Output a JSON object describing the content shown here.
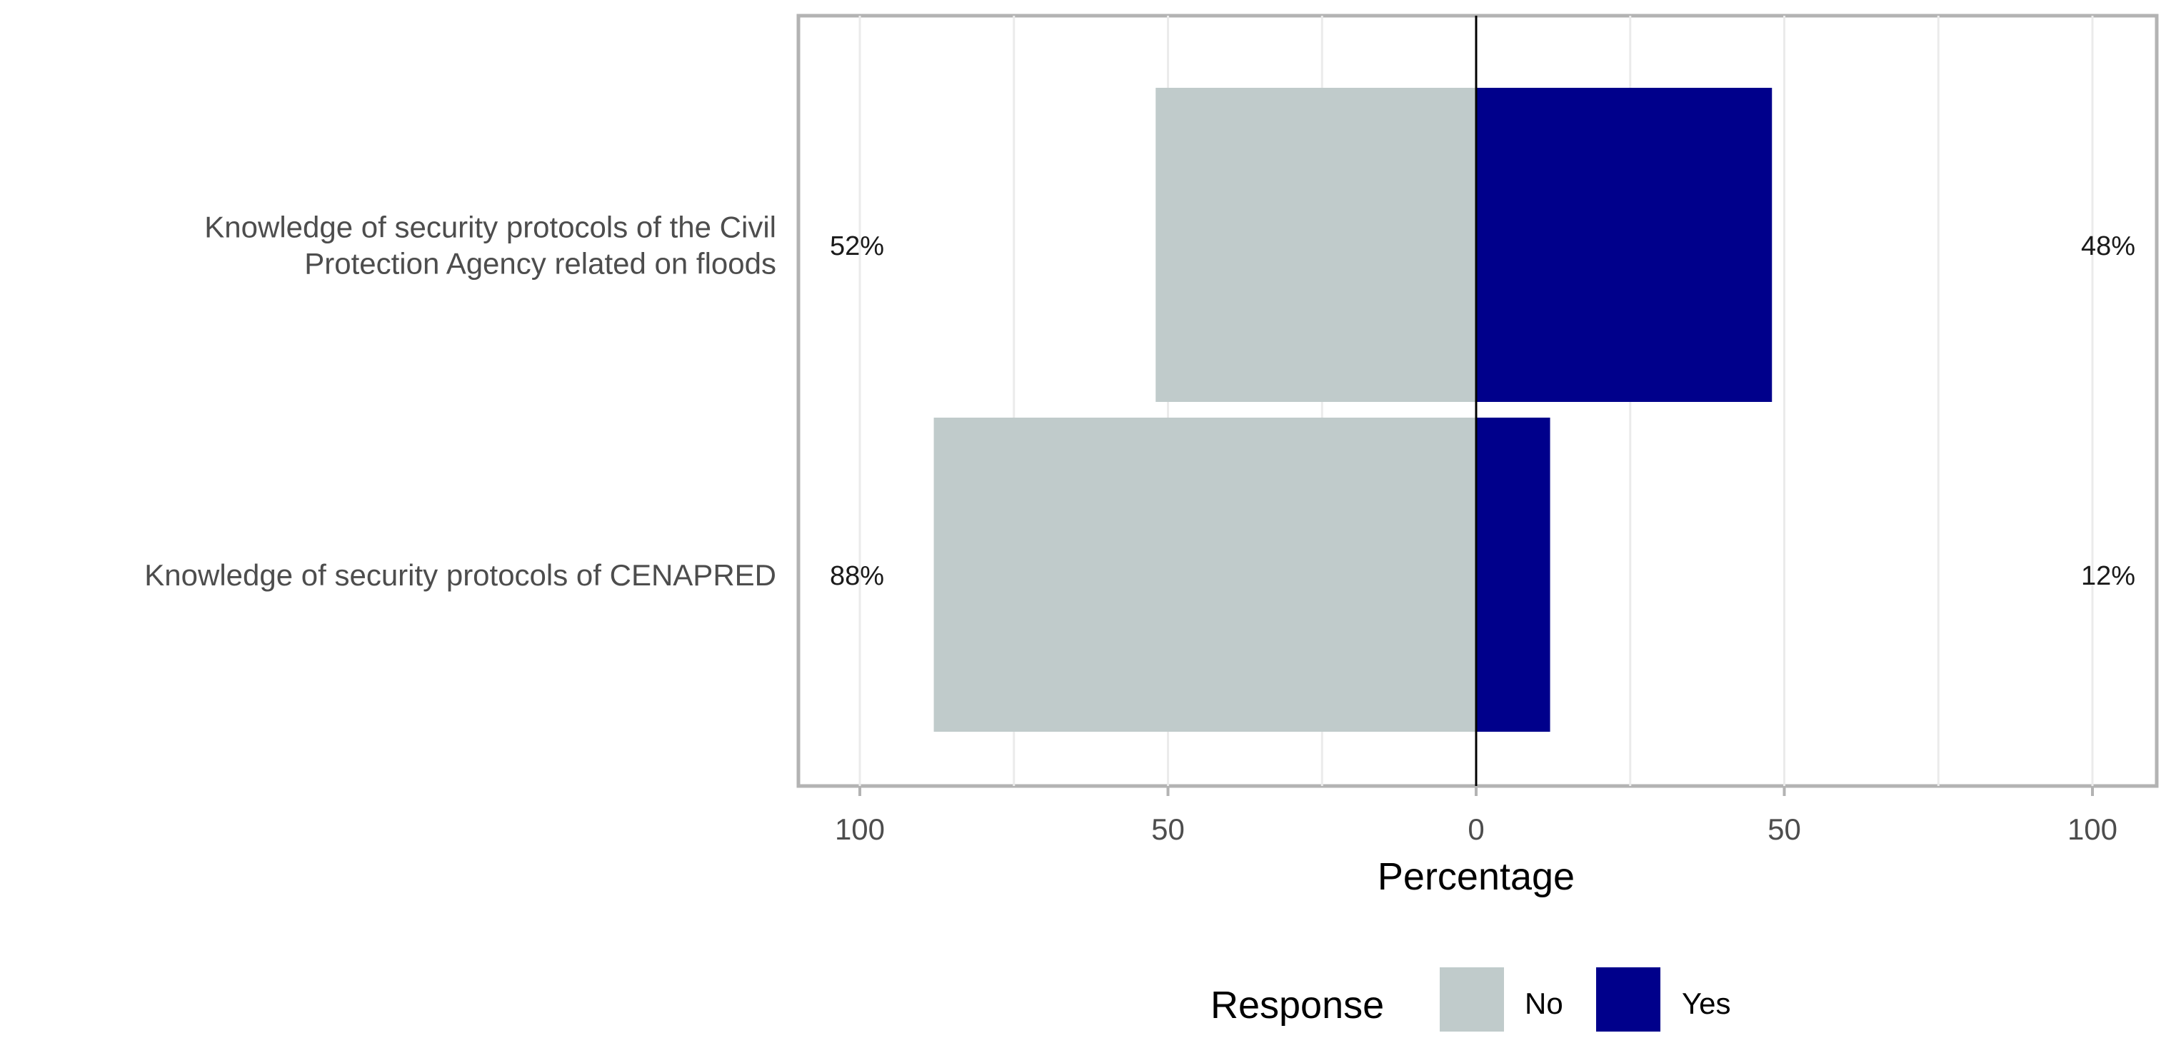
{
  "chart_data": {
    "type": "bar",
    "orientation": "horizontal",
    "diverging": true,
    "categories": [
      "Knowledge of security protocols of the Civil Protection Agency related on floods",
      "Knowledge of security protocols of CENAPRED"
    ],
    "category_label_lines": [
      [
        "Knowledge of security protocols of the Civil",
        "Protection Agency related on floods"
      ],
      [
        "Knowledge of security protocols of CENAPRED"
      ]
    ],
    "series": [
      {
        "name": "No",
        "color": "#C0CBCB",
        "direction": "left",
        "values": [
          52,
          88
        ],
        "labels": [
          "52%",
          "88%"
        ]
      },
      {
        "name": "Yes",
        "color": "#00008B",
        "direction": "right",
        "values": [
          48,
          12
        ],
        "labels": [
          "48%",
          "12%"
        ]
      }
    ],
    "xlabel": "Percentage",
    "ylabel": "",
    "xlim": [
      -100,
      100
    ],
    "x_ticks": [
      -100,
      -50,
      0,
      50,
      100
    ],
    "x_tick_labels": [
      "100",
      "50",
      "0",
      "50",
      "100"
    ],
    "grid": true,
    "legend": {
      "title": "Response",
      "position": "bottom",
      "entries": [
        "No",
        "Yes"
      ]
    }
  }
}
